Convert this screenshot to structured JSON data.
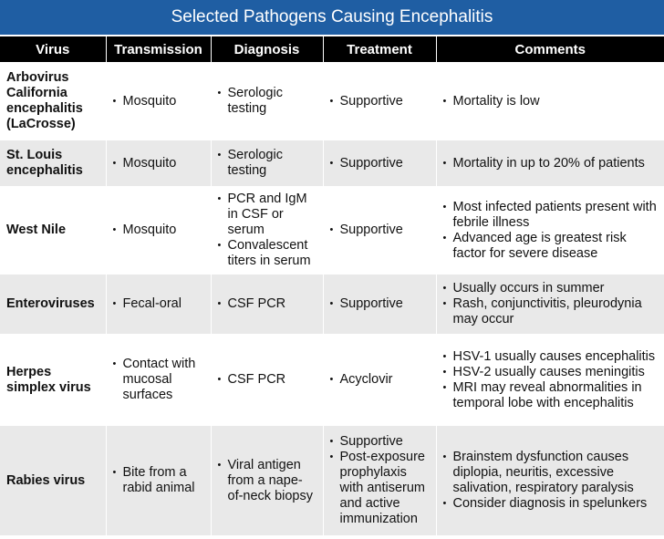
{
  "title": "Selected Pathogens Causing Encephalitis",
  "headers": [
    "Virus",
    "Transmission",
    "Diagnosis",
    "Treatment",
    "Comments"
  ],
  "rows": [
    {
      "virus": "Arbovirus California encephalitis (LaCrosse)",
      "transmission": [
        "Mosquito"
      ],
      "diagnosis": [
        "Serologic testing"
      ],
      "treatment": [
        "Supportive"
      ],
      "comments": [
        "Mortality is low"
      ]
    },
    {
      "virus": "St. Louis encephalitis",
      "transmission": [
        "Mosquito"
      ],
      "diagnosis": [
        "Serologic testing"
      ],
      "treatment": [
        "Supportive"
      ],
      "comments": [
        "Mortality in up to 20% of patients"
      ]
    },
    {
      "virus": "West Nile",
      "transmission": [
        "Mosquito"
      ],
      "diagnosis": [
        "PCR and IgM in CSF or serum",
        "Convalescent titers in serum"
      ],
      "treatment": [
        "Supportive"
      ],
      "comments": [
        "Most infected patients present with febrile illness",
        "Advanced age is greatest risk factor for severe disease"
      ]
    },
    {
      "virus": "Enteroviruses",
      "transmission": [
        "Fecal-oral"
      ],
      "diagnosis": [
        "CSF PCR"
      ],
      "treatment": [
        "Supportive"
      ],
      "comments": [
        "Usually occurs in summer",
        "Rash, conjunctivitis, pleurodynia may occur"
      ]
    },
    {
      "virus": "Herpes simplex virus",
      "transmission": [
        "Contact with mucosal surfaces"
      ],
      "diagnosis": [
        "CSF PCR"
      ],
      "treatment": [
        "Acyclovir"
      ],
      "comments": [
        "HSV-1 usually causes encephalitis",
        "HSV-2 usually causes meningitis",
        "MRI may reveal abnormalities in temporal lobe with encephalitis"
      ]
    },
    {
      "virus": "Rabies virus",
      "transmission": [
        "Bite from a rabid animal"
      ],
      "diagnosis": [
        "Viral antigen from a nape-of-neck biopsy"
      ],
      "treatment": [
        "Supportive",
        "Post-exposure prophylaxis with antiserum and active immunization"
      ],
      "comments": [
        "Brainstem dysfunction causes diplopia, neuritis, excessive salivation, respiratory paralysis",
        "Consider diagnosis in spelunkers"
      ]
    }
  ]
}
